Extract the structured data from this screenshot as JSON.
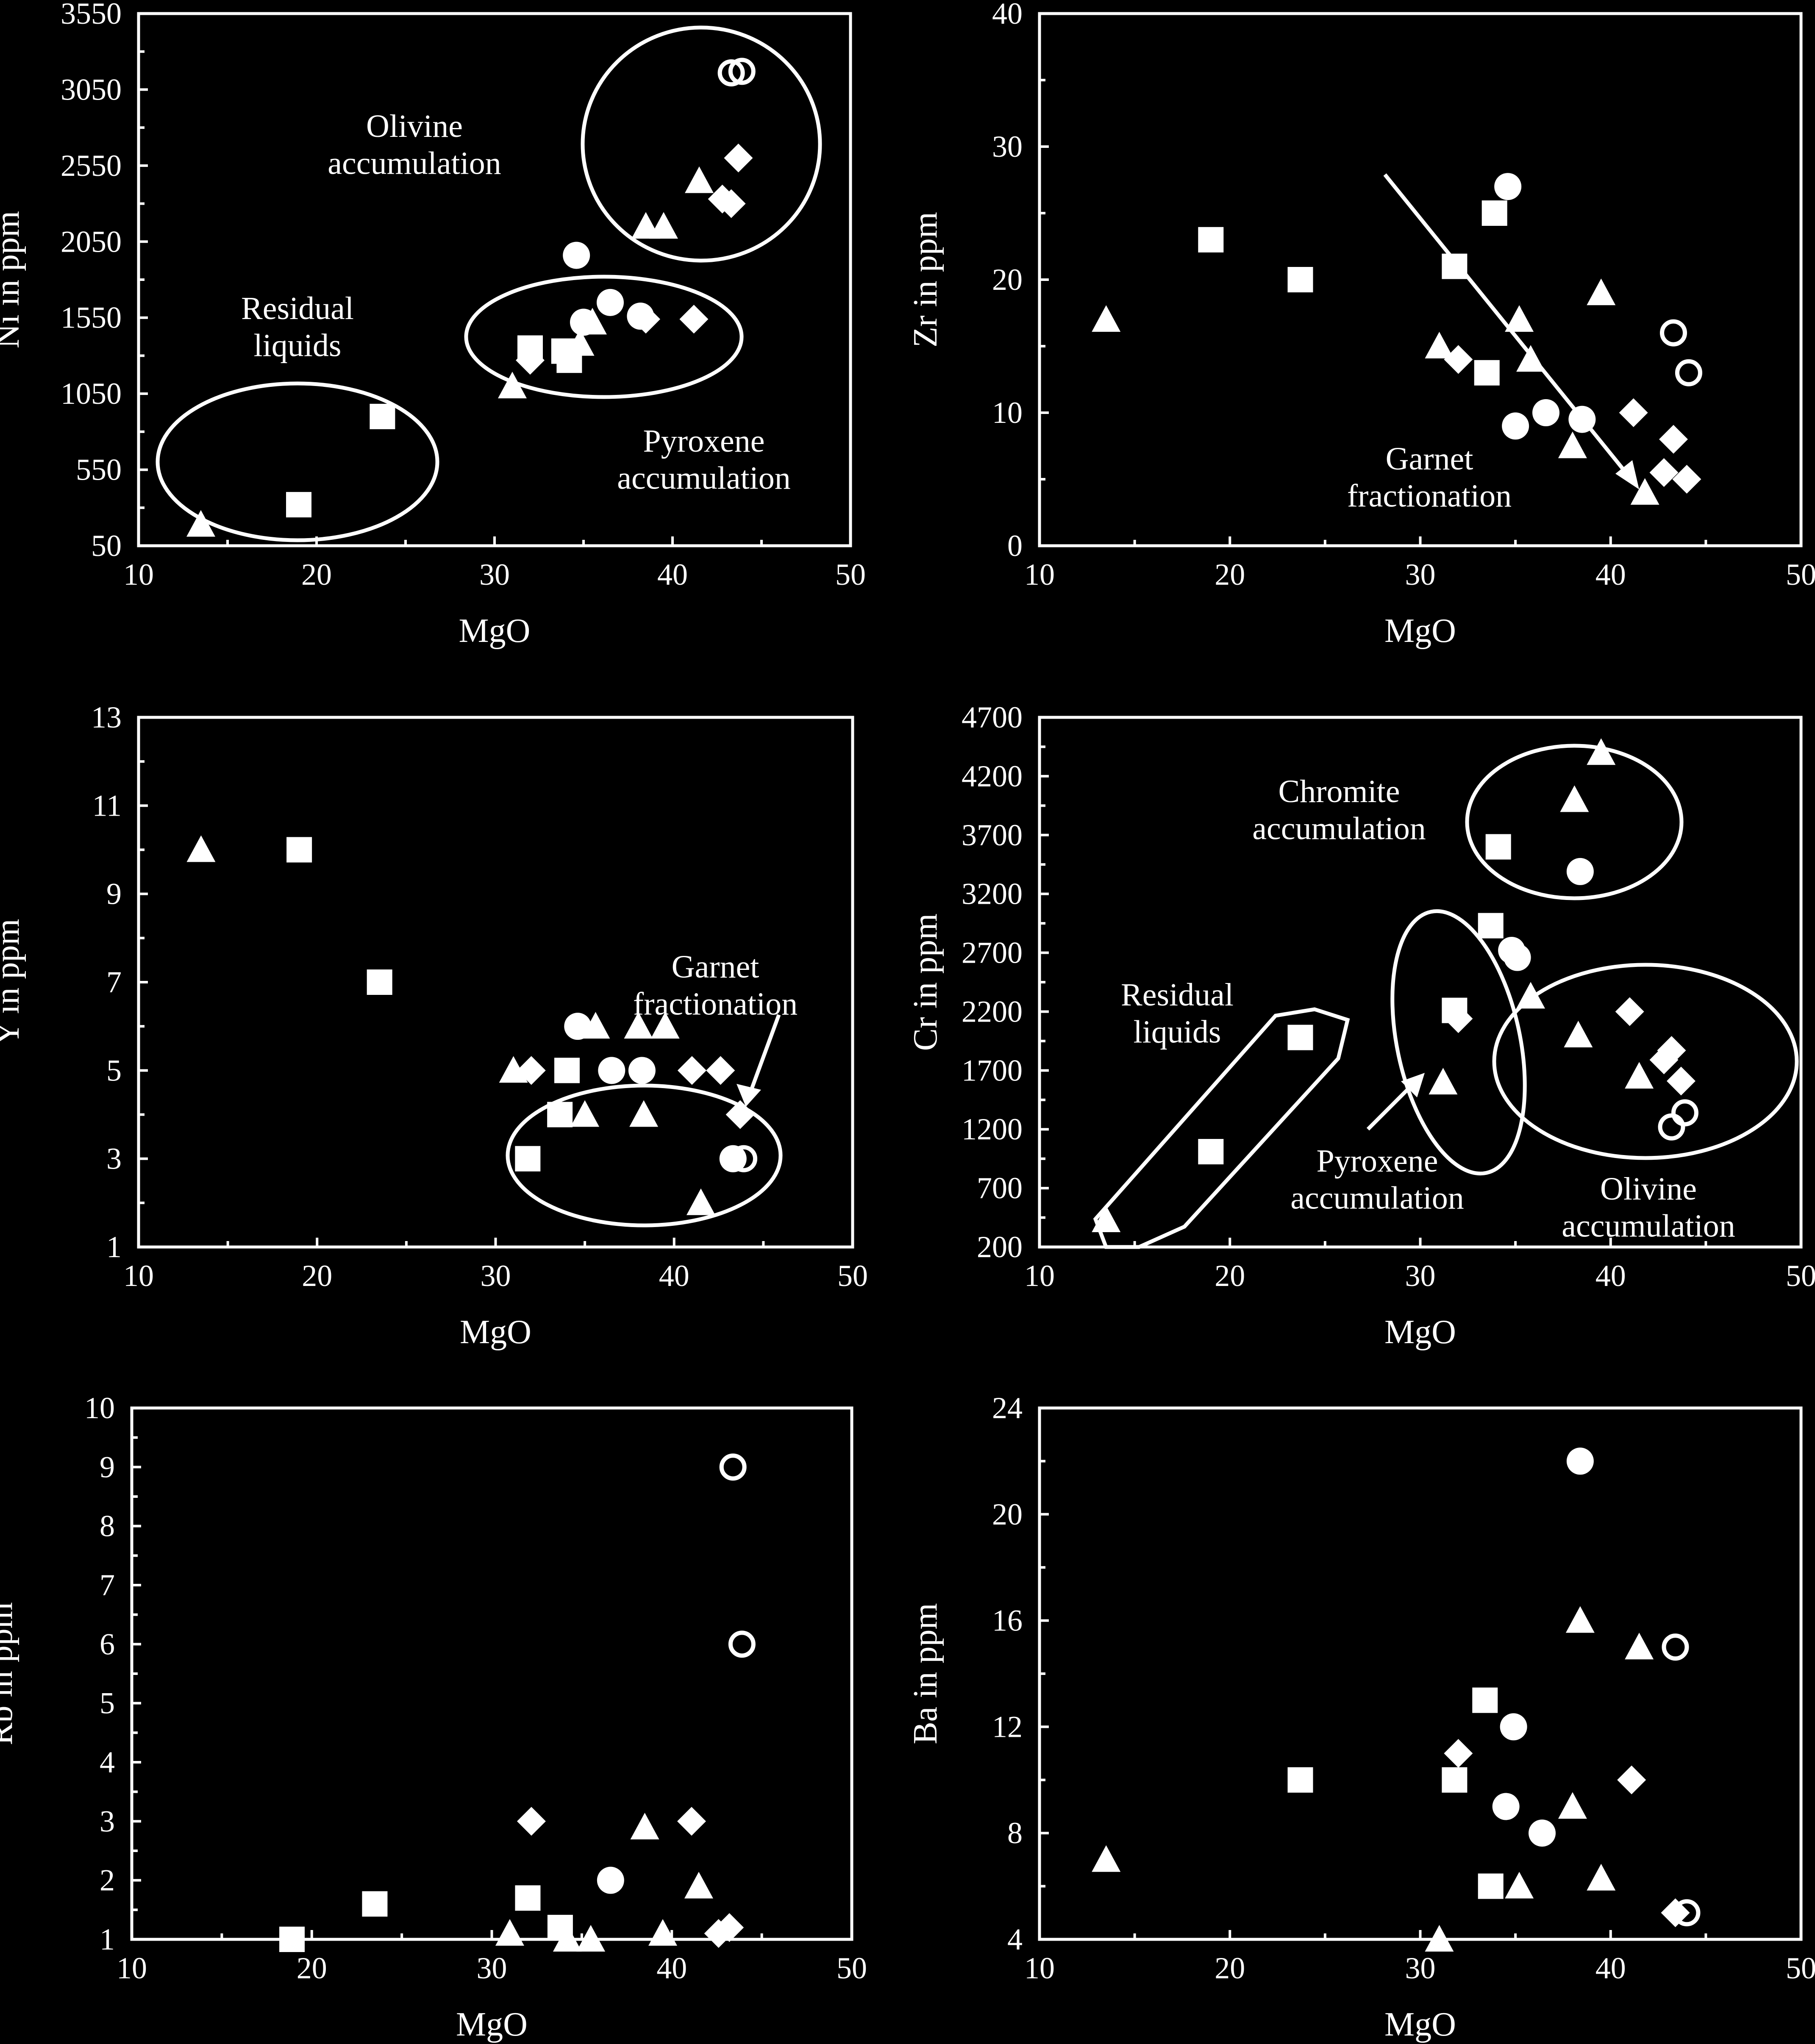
{
  "chart_data": [
    {
      "type": "scatter",
      "xlabel": "MgO",
      "ylabel": "Ni in ppm",
      "xlim": [
        10,
        50
      ],
      "ylim": [
        50,
        3550
      ],
      "xticks": [
        "10",
        "20",
        "30",
        "40",
        "50"
      ],
      "yticks": [
        "50",
        "550",
        "1050",
        "1550",
        "2050",
        "2550",
        "3050",
        "3550"
      ],
      "series": [
        {
          "marker": "square",
          "points": [
            [
              19,
              320
            ],
            [
              23.7,
              900
            ],
            [
              32,
              1350
            ],
            [
              33.9,
              1330
            ],
            [
              34.2,
              1270
            ]
          ]
        },
        {
          "marker": "triangle",
          "points": [
            [
              13.5,
              190
            ],
            [
              31,
              1100
            ],
            [
              34.8,
              1380
            ],
            [
              35.5,
              1520
            ],
            [
              38.5,
              2150
            ],
            [
              39.5,
              2150
            ],
            [
              41.5,
              2450
            ]
          ]
        },
        {
          "marker": "circle",
          "points": [
            [
              34.6,
              1960
            ],
            [
              35,
              1520
            ],
            [
              36.5,
              1650
            ],
            [
              38.2,
              1560
            ]
          ]
        },
        {
          "marker": "diamond",
          "points": [
            [
              32,
              1270
            ],
            [
              38.5,
              1540
            ],
            [
              41.2,
              1540
            ],
            [
              42.8,
              2330
            ],
            [
              43.3,
              2300
            ],
            [
              43.7,
              2600
            ]
          ]
        },
        {
          "marker": "open-circle",
          "points": [
            [
              43.3,
              3160
            ],
            [
              43.9,
              3170
            ]
          ]
        }
      ],
      "annotations": [
        "Olivine\naccumulation",
        "Residual\nliquids",
        "Pyroxene\naccumulation"
      ]
    },
    {
      "type": "scatter",
      "xlabel": "MgO",
      "ylabel": "Zr in ppm",
      "xlim": [
        10,
        50
      ],
      "ylim": [
        0,
        40
      ],
      "xticks": [
        "10",
        "20",
        "30",
        "40",
        "50"
      ],
      "yticks": [
        "0",
        "10",
        "20",
        "30",
        "40"
      ],
      "series": [
        {
          "marker": "square",
          "points": [
            [
              19,
              23
            ],
            [
              23.7,
              20
            ],
            [
              31.8,
              21
            ],
            [
              33.5,
              13
            ],
            [
              33.9,
              25
            ]
          ]
        },
        {
          "marker": "triangle",
          "points": [
            [
              13.5,
              17
            ],
            [
              31,
              15
            ],
            [
              35.2,
              17
            ],
            [
              35.8,
              14
            ],
            [
              38,
              7.5
            ],
            [
              39.5,
              19
            ],
            [
              41.8,
              4
            ]
          ]
        },
        {
          "marker": "circle",
          "points": [
            [
              34.6,
              27
            ],
            [
              35,
              9
            ],
            [
              36.6,
              10
            ],
            [
              38.5,
              9.5
            ]
          ]
        },
        {
          "marker": "diamond",
          "points": [
            [
              32,
              14
            ],
            [
              41.2,
              10
            ],
            [
              42.8,
              5.5
            ],
            [
              43.3,
              8
            ],
            [
              44,
              5
            ]
          ]
        },
        {
          "marker": "open-circle",
          "points": [
            [
              43.3,
              16
            ],
            [
              44.1,
              13
            ]
          ]
        }
      ],
      "annotations": [
        "Garnet\nfractionation"
      ]
    },
    {
      "type": "scatter",
      "xlabel": "MgO",
      "ylabel": "Y in ppm",
      "xlim": [
        10,
        50
      ],
      "ylim": [
        1,
        13
      ],
      "xticks": [
        "10",
        "20",
        "30",
        "40",
        "50"
      ],
      "yticks": [
        "1",
        "3",
        "5",
        "7",
        "9",
        "11",
        "13"
      ],
      "series": [
        {
          "marker": "square",
          "points": [
            [
              19,
              10
            ],
            [
              23.5,
              7
            ],
            [
              31.8,
              3
            ],
            [
              33.6,
              4
            ],
            [
              34,
              5
            ]
          ]
        },
        {
          "marker": "triangle",
          "points": [
            [
              13.5,
              10
            ],
            [
              31,
              5
            ],
            [
              35,
              4
            ],
            [
              35.6,
              6
            ],
            [
              38,
              6
            ],
            [
              38.3,
              4
            ],
            [
              39.5,
              6
            ],
            [
              41.5,
              2
            ]
          ]
        },
        {
          "marker": "circle",
          "points": [
            [
              34.6,
              6
            ],
            [
              36.5,
              5
            ],
            [
              38.2,
              5
            ],
            [
              43.3,
              3
            ]
          ]
        },
        {
          "marker": "diamond",
          "points": [
            [
              32,
              5
            ],
            [
              41,
              5
            ],
            [
              42.6,
              5
            ],
            [
              43.7,
              4
            ]
          ]
        },
        {
          "marker": "open-circle",
          "points": [
            [
              43.9,
              3
            ]
          ]
        }
      ],
      "annotations": [
        "Garnet\nfractionation"
      ]
    },
    {
      "type": "scatter",
      "xlabel": "MgO",
      "ylabel": "Cr in ppm",
      "xlim": [
        10,
        50
      ],
      "ylim": [
        200,
        4700
      ],
      "xticks": [
        "10",
        "20",
        "30",
        "40",
        "50"
      ],
      "yticks": [
        "200",
        "700",
        "1200",
        "1700",
        "2200",
        "2700",
        "3200",
        "3700",
        "4200",
        "4700"
      ],
      "series": [
        {
          "marker": "square",
          "points": [
            [
              19,
              1010
            ],
            [
              23.7,
              1980
            ],
            [
              31.8,
              2210
            ],
            [
              33.7,
              2930
            ],
            [
              34.1,
              3600
            ]
          ]
        },
        {
          "marker": "triangle",
          "points": [
            [
              13.5,
              430
            ],
            [
              31.2,
              1600
            ],
            [
              35.8,
              2330
            ],
            [
              38.1,
              4000
            ],
            [
              38.3,
              2000
            ],
            [
              39.5,
              4400
            ],
            [
              41.5,
              1650
            ]
          ]
        },
        {
          "marker": "circle",
          "points": [
            [
              34.8,
              2720
            ],
            [
              35.1,
              2660
            ],
            [
              38.4,
              3390
            ]
          ]
        },
        {
          "marker": "diamond",
          "points": [
            [
              32,
              2140
            ],
            [
              41,
              2200
            ],
            [
              42.8,
              1790
            ],
            [
              43.2,
              1870
            ],
            [
              43.7,
              1610
            ]
          ]
        },
        {
          "marker": "open-circle",
          "points": [
            [
              43.2,
              1220
            ],
            [
              43.9,
              1340
            ]
          ]
        }
      ],
      "annotations": [
        "Chromite\naccumulation",
        "Residual\nliquids",
        "Pyroxene\naccumulation",
        "Olivine\naccumulation"
      ]
    },
    {
      "type": "scatter",
      "xlabel": "MgO",
      "ylabel": "Rb in ppm",
      "xlim": [
        10,
        50
      ],
      "ylim": [
        1,
        10
      ],
      "xticks": [
        "10",
        "20",
        "30",
        "40",
        "50"
      ],
      "yticks": [
        "1",
        "2",
        "3",
        "4",
        "5",
        "6",
        "7",
        "8",
        "9",
        "10"
      ],
      "series": [
        {
          "marker": "square",
          "points": [
            [
              18.9,
              1
            ],
            [
              23.5,
              1.6
            ],
            [
              32,
              1.7
            ],
            [
              33.8,
              1.2
            ]
          ]
        },
        {
          "marker": "triangle",
          "points": [
            [
              31,
              1.1
            ],
            [
              34.2,
              1
            ],
            [
              35.5,
              1
            ],
            [
              38.5,
              2.9
            ],
            [
              39.5,
              1.1
            ],
            [
              41.5,
              1.9
            ]
          ]
        },
        {
          "marker": "circle",
          "points": [
            [
              36.6,
              2
            ]
          ]
        },
        {
          "marker": "diamond",
          "points": [
            [
              32.2,
              3
            ],
            [
              41.1,
              3
            ],
            [
              42.6,
              1.1
            ],
            [
              43.2,
              1.2
            ]
          ]
        },
        {
          "marker": "open-circle",
          "points": [
            [
              43.4,
              9
            ],
            [
              43.9,
              6
            ]
          ]
        }
      ]
    },
    {
      "type": "scatter",
      "xlabel": "MgO",
      "ylabel": "Ba in ppm",
      "xlim": [
        10,
        50
      ],
      "ylim": [
        4,
        24
      ],
      "xticks": [
        "10",
        "20",
        "30",
        "40",
        "50"
      ],
      "yticks": [
        "4",
        "8",
        "12",
        "16",
        "20",
        "24"
      ],
      "series": [
        {
          "marker": "square",
          "points": [
            [
              23.7,
              10
            ],
            [
              31.8,
              10
            ],
            [
              33.4,
              13
            ],
            [
              33.7,
              6
            ]
          ]
        },
        {
          "marker": "triangle",
          "points": [
            [
              13.5,
              7
            ],
            [
              31,
              4
            ],
            [
              35.2,
              6
            ],
            [
              38,
              9
            ],
            [
              38.4,
              16
            ],
            [
              39.5,
              6.3
            ],
            [
              41.5,
              15
            ]
          ]
        },
        {
          "marker": "circle",
          "points": [
            [
              34.5,
              9
            ],
            [
              34.9,
              12
            ],
            [
              36.4,
              8
            ],
            [
              38.4,
              22
            ]
          ]
        },
        {
          "marker": "diamond",
          "points": [
            [
              32,
              11
            ],
            [
              41.1,
              10
            ],
            [
              43.4,
              5
            ]
          ]
        },
        {
          "marker": "open-circle",
          "points": [
            [
              43.4,
              15
            ],
            [
              44,
              5
            ]
          ]
        }
      ]
    }
  ]
}
